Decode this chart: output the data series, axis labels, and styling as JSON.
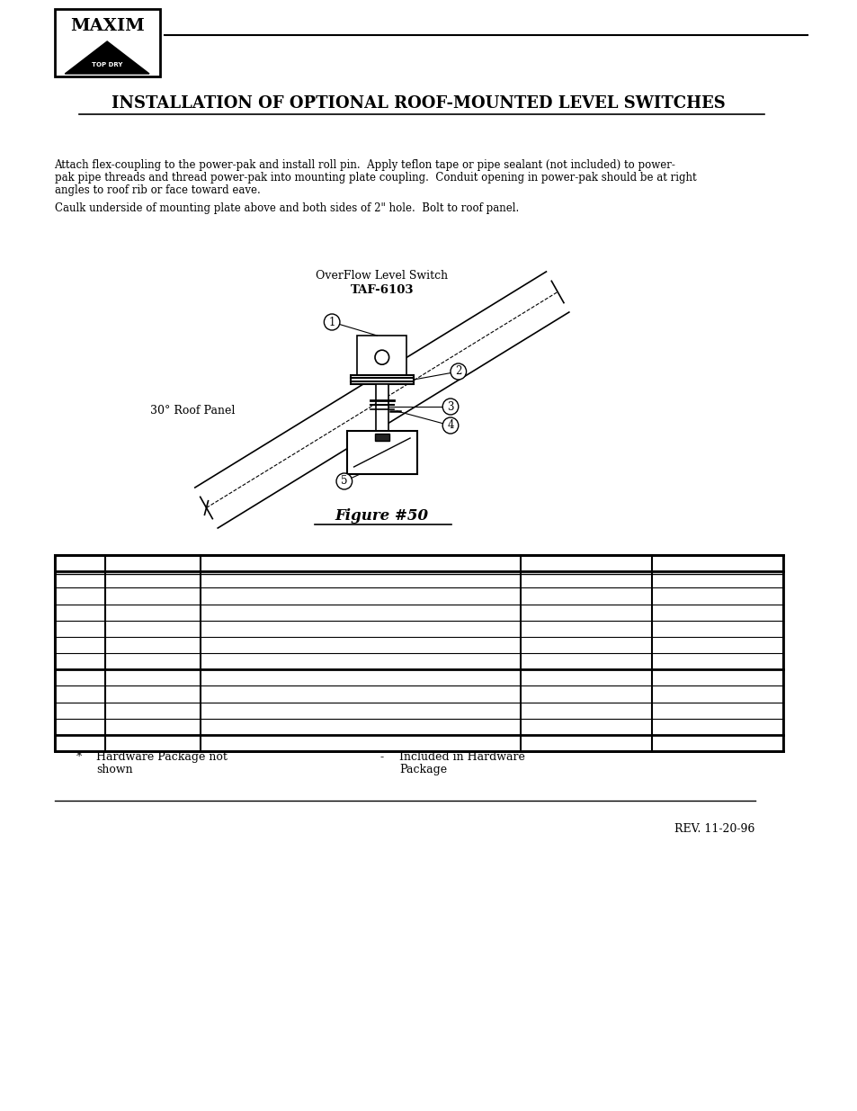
{
  "title": "INSTALLATION OF OPTIONAL ROOF-MOUNTED LEVEL SWITCHES",
  "para1_lines": [
    "Attach flex-coupling to the power-pak and install roll pin.  Apply teflon tape or pipe sealant (not included) to power-",
    "pak pipe threads and thread power-pak into mounting plate coupling.  Conduit opening in power-pak should be at right",
    "angles to roof rib or face toward eave."
  ],
  "para2": "Caulk underside of mounting plate above and both sides of 2\" hole.  Bolt to roof panel.",
  "figure_label": "Figure #50",
  "overflow_label1": "OverFlow Level Switch",
  "overflow_label2": "TAF-6103",
  "roof_panel_label": "30° Roof Panel",
  "footnote1_sym": "*",
  "footnote1_text1": "Hardware Package not",
  "footnote1_text2": "shown",
  "footnote2_sym": "-",
  "footnote2_text1": "Included in Hardware",
  "footnote2_text2": "Package",
  "rev_text": "REV. 11-20-96",
  "bg_color": "#ffffff",
  "text_color": "#000000",
  "table_rows": 12,
  "table_cols": 5
}
